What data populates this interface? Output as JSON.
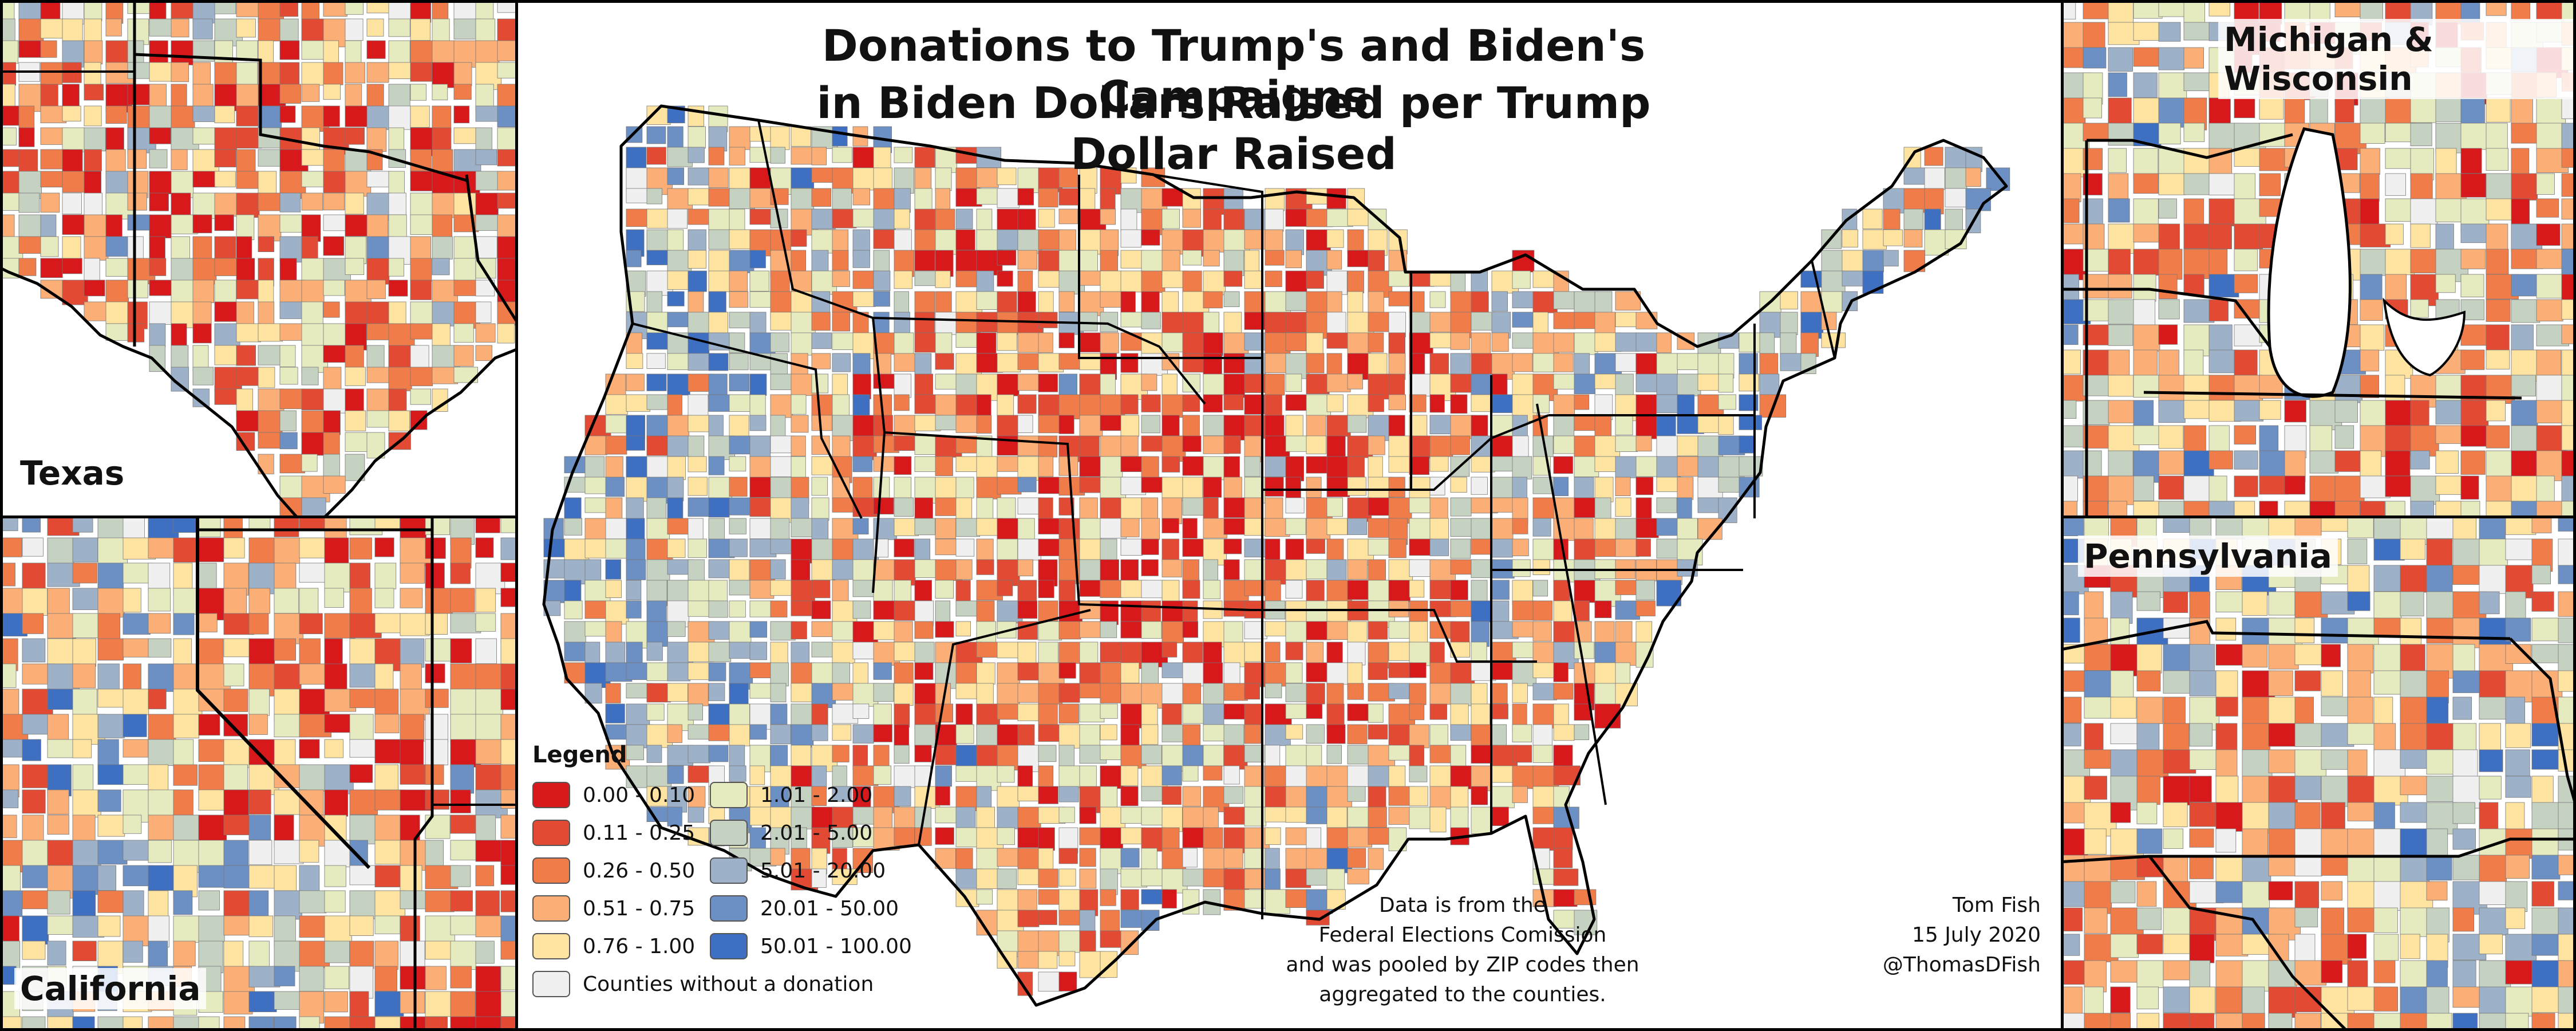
{
  "title": {
    "line1": "Donations to Trump's and Biden's Campaigns",
    "line2": "in Biden Dollars Raised per Trump Dollar Raised"
  },
  "insets": {
    "texas": "Texas",
    "california": "California",
    "michigan": "Michigan & Wisconsin",
    "pennsylvania": "Pennsylvania"
  },
  "legend": {
    "title": "Legend",
    "bins": [
      {
        "label": "0.00 - 0.10",
        "color": "#d7191c"
      },
      {
        "label": "0.11 - 0.25",
        "color": "#e34a33"
      },
      {
        "label": "0.26 - 0.50",
        "color": "#f07c4a"
      },
      {
        "label": "0.51 - 0.75",
        "color": "#fbae76"
      },
      {
        "label": "0.76 - 1.00",
        "color": "#fee4a0"
      },
      {
        "label": "1.01 - 2.00",
        "color": "#e6ebbf"
      },
      {
        "label": "2.01 - 5.00",
        "color": "#c5d2c2"
      },
      {
        "label": "5.01 - 20.00",
        "color": "#9db1c9"
      },
      {
        "label": "20.01 - 50.00",
        "color": "#6c8fc4"
      },
      {
        "label": "50.01 - 100.00",
        "color": "#3f6fc0"
      }
    ],
    "no_data": {
      "label": "Counties without a donation",
      "color": "#f0f0f0"
    }
  },
  "source_note": {
    "line1": "Data is from the",
    "line2": "Federal Elections Comission",
    "line3": "and was pooled by ZIP codes then",
    "line4": "aggregated to the counties."
  },
  "credit": {
    "author": "Tom Fish",
    "date": "15 July 2020",
    "handle": "@ThomasDFish"
  },
  "colors": {
    "border": "#000000",
    "water": "#ffffff"
  }
}
